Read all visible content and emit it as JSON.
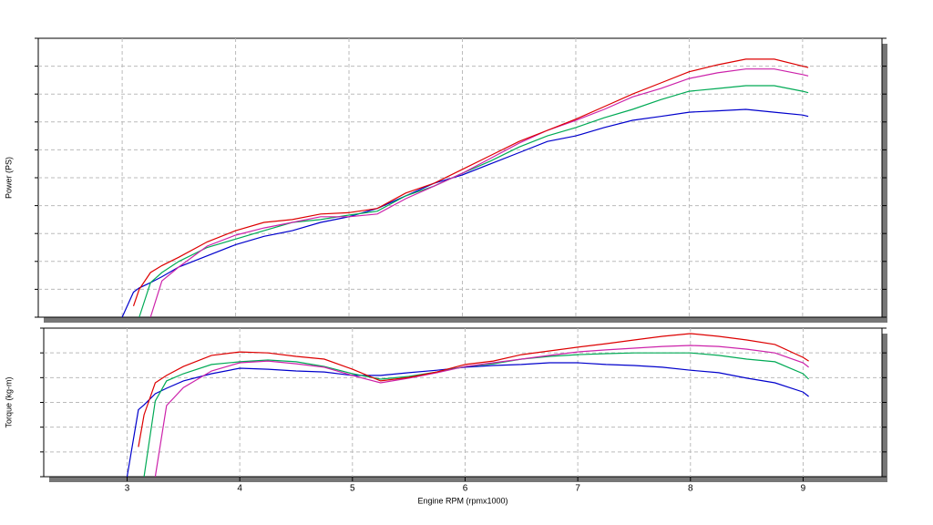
{
  "chart_data": [
    {
      "type": "line",
      "ylabel": "Power (PS)",
      "xlim": [
        2.26,
        9.7
      ],
      "ylim": [
        0,
        100
      ],
      "yticks": [
        0,
        10,
        20,
        30,
        40,
        50,
        60,
        70,
        80,
        90,
        100
      ],
      "xticks": [
        3,
        4,
        5,
        6,
        7,
        8,
        9
      ],
      "grid": true,
      "x_tick_labels": false,
      "y_tick_labels": false,
      "x": [
        3.0,
        3.1,
        3.15,
        3.25,
        3.35,
        3.5,
        3.75,
        4,
        4.25,
        4.5,
        4.75,
        5,
        5.25,
        5.5,
        5.75,
        6,
        6.25,
        6.5,
        6.75,
        7,
        7.25,
        7.5,
        7.75,
        8,
        8.25,
        8.5,
        8.75,
        9,
        9.05
      ],
      "series": [
        {
          "color": "#0000cc",
          "values": [
            0,
            9,
            10.5,
            12.4,
            14.5,
            18,
            22,
            26,
            29,
            31,
            34,
            36,
            39,
            43.5,
            48,
            51,
            55,
            59,
            63,
            65,
            68,
            70.6,
            72,
            73.5,
            74,
            74.5,
            73.5,
            72.5,
            72
          ]
        },
        {
          "color": "#00aa55",
          "values": [
            null,
            null,
            0,
            12.4,
            16,
            20,
            25,
            28,
            31,
            34,
            35,
            36.6,
            38,
            43.5,
            47,
            51.6,
            56,
            61,
            65,
            68,
            71.5,
            74.5,
            78,
            81,
            82,
            83,
            83,
            81,
            80.5
          ]
        },
        {
          "color": "#cc22aa",
          "values": [
            null,
            null,
            null,
            0,
            13,
            18,
            25.5,
            29.4,
            32,
            34,
            36,
            36,
            37,
            42.5,
            47,
            51.6,
            57,
            62.4,
            67,
            70.6,
            74.5,
            79,
            82,
            85.6,
            87.6,
            89,
            89,
            87,
            86.5
          ]
        },
        {
          "color": "#dd0000",
          "values": [
            null,
            4,
            10,
            16,
            18.5,
            21.5,
            27,
            31,
            34,
            35,
            37,
            37.5,
            39,
            44.5,
            48,
            53,
            58,
            63,
            67,
            71,
            75.5,
            80,
            84,
            88,
            90.5,
            92.5,
            92.5,
            90,
            89.5
          ]
        }
      ]
    },
    {
      "type": "line",
      "ylabel": "Torque (kg-m)",
      "xlabel": "Engine RPM (rpmx1000)",
      "xlim": [
        2.26,
        9.7
      ],
      "ylim": [
        0,
        60
      ],
      "yticks": [
        0,
        10,
        20,
        30,
        40,
        50,
        60
      ],
      "xticks": [
        3,
        4,
        5,
        6,
        7,
        8,
        9
      ],
      "grid": true,
      "x_tick_labels": true,
      "y_tick_labels": false,
      "x": [
        3.0,
        3.1,
        3.15,
        3.25,
        3.35,
        3.5,
        3.75,
        4,
        4.25,
        4.5,
        4.75,
        5,
        5.25,
        5.5,
        5.75,
        6,
        6.25,
        6.5,
        6.75,
        7,
        7.25,
        7.5,
        7.75,
        8,
        8.25,
        8.5,
        8.75,
        9,
        9.05
      ],
      "series": [
        {
          "color": "#0000cc",
          "values": [
            0,
            27,
            29,
            33.5,
            35.7,
            38.7,
            41.6,
            43.8,
            43.4,
            42.7,
            42.3,
            40.9,
            40.9,
            42,
            43,
            44.2,
            44.9,
            45.3,
            46,
            46,
            45.3,
            44.9,
            44.2,
            43,
            42,
            39.8,
            37.9,
            34.2,
            32.4
          ]
        },
        {
          "color": "#00aa55",
          "values": [
            null,
            null,
            0,
            30.6,
            38.7,
            41.6,
            45.3,
            46.4,
            47.1,
            46.4,
            44.5,
            41.6,
            39.4,
            40.5,
            42.3,
            44.5,
            45.6,
            47.5,
            48.6,
            49.3,
            49.7,
            50,
            50,
            50,
            49,
            47.5,
            46.4,
            41.6,
            39.4
          ]
        },
        {
          "color": "#cc22aa",
          "values": [
            null,
            null,
            null,
            0,
            28.7,
            36,
            42.7,
            46,
            46.7,
            45.6,
            44.2,
            40.9,
            37.9,
            39.8,
            42,
            44.5,
            46,
            47.5,
            49,
            50.4,
            51.2,
            51.9,
            52.6,
            53,
            52.6,
            51.5,
            50,
            46,
            44.2
          ]
        },
        {
          "color": "#dd0000",
          "values": [
            null,
            12,
            25,
            37.9,
            40.9,
            44.5,
            49,
            50.4,
            50,
            48.6,
            47.5,
            43.4,
            38.7,
            40.1,
            42.3,
            45.3,
            46.7,
            49.3,
            50.8,
            52.3,
            53.7,
            55.2,
            56.7,
            57.8,
            56.7,
            55.2,
            53.4,
            48.2,
            46.7
          ]
        }
      ]
    }
  ]
}
